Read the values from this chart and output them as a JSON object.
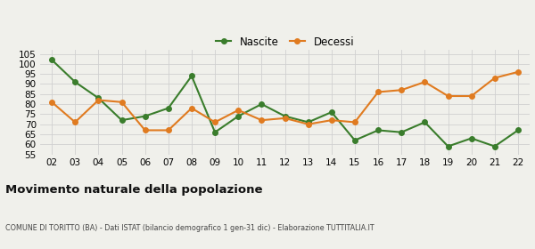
{
  "years": [
    "02",
    "03",
    "04",
    "05",
    "06",
    "07",
    "08",
    "09",
    "10",
    "11",
    "12",
    "13",
    "14",
    "15",
    "16",
    "17",
    "18",
    "19",
    "20",
    "21",
    "22"
  ],
  "nascite": [
    102,
    91,
    83,
    72,
    74,
    78,
    94,
    66,
    74,
    80,
    74,
    71,
    76,
    62,
    67,
    66,
    71,
    59,
    63,
    59,
    67
  ],
  "decessi": [
    81,
    71,
    82,
    81,
    67,
    67,
    78,
    71,
    77,
    72,
    73,
    70,
    72,
    71,
    86,
    87,
    91,
    84,
    84,
    93,
    96
  ],
  "nascite_color": "#3a7d2c",
  "decessi_color": "#e07b20",
  "bg_color": "#f0f0eb",
  "grid_color": "#d0d0d0",
  "ylim": [
    55,
    107
  ],
  "yticks": [
    55,
    60,
    65,
    70,
    75,
    80,
    85,
    90,
    95,
    100,
    105
  ],
  "title": "Movimento naturale della popolazione",
  "subtitle": "COMUNE DI TORITTO (BA) - Dati ISTAT (bilancio demografico 1 gen-31 dic) - Elaborazione TUTTITALIA.IT",
  "legend_labels": [
    "Nascite",
    "Decessi"
  ],
  "marker_size": 4,
  "line_width": 1.5
}
